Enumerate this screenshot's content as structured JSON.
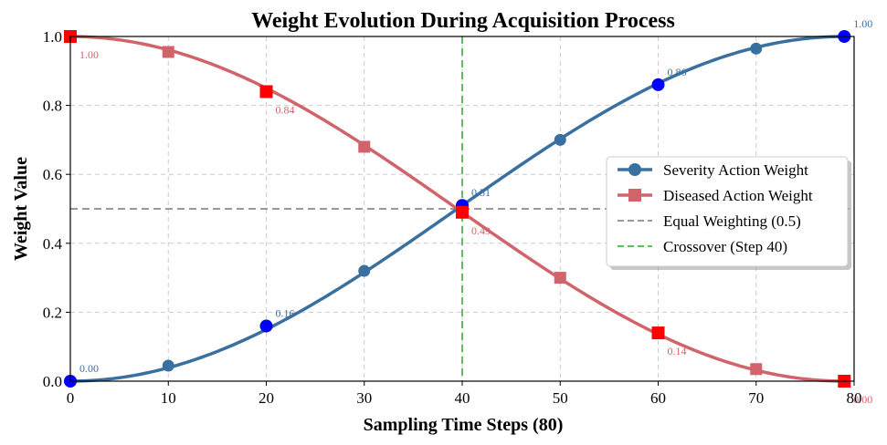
{
  "chart_data": {
    "type": "line",
    "title": "Weight Evolution During Acquisition Process",
    "xlabel": "Sampling Time Steps (80)",
    "ylabel": "Weight Value",
    "xlim": [
      0,
      80
    ],
    "ylim": [
      0,
      1
    ],
    "xticks": [
      "0",
      "10",
      "20",
      "30",
      "40",
      "50",
      "60",
      "70",
      "80"
    ],
    "yticks": [
      "0.0",
      "0.2",
      "0.4",
      "0.6",
      "0.8",
      "1.0"
    ],
    "grid": true,
    "legend_position": "center-right",
    "series": [
      {
        "name": "Severity Action Weight",
        "color": "#3a70a0",
        "marker": "circle",
        "x": [
          0,
          10,
          20,
          30,
          40,
          50,
          60,
          70,
          79
        ],
        "values": [
          0.0,
          0.045,
          0.16,
          0.32,
          0.51,
          0.7,
          0.86,
          0.965,
          1.0
        ]
      },
      {
        "name": "Diseased Action Weight",
        "color": "#d0646a",
        "marker": "square",
        "x": [
          0,
          10,
          20,
          30,
          40,
          50,
          60,
          70,
          79
        ],
        "values": [
          1.0,
          0.955,
          0.84,
          0.68,
          0.49,
          0.3,
          0.14,
          0.035,
          0.0
        ]
      }
    ],
    "reference_lines": [
      {
        "name": "Equal Weighting (0.5)",
        "orientation": "horizontal",
        "value": 0.5,
        "color": "#999999"
      },
      {
        "name": "Crossover (Step 40)",
        "orientation": "vertical",
        "value": 40,
        "color": "#5cbf5c"
      }
    ],
    "highlights": [
      {
        "series": 0,
        "x": 0,
        "y": 0.0,
        "label": "0.00",
        "color": "#0000ff",
        "label_color": "#3a70a0"
      },
      {
        "series": 0,
        "x": 20,
        "y": 0.16,
        "label": "0.16",
        "color": "#0000ff",
        "label_color": "#3a70a0"
      },
      {
        "series": 0,
        "x": 40,
        "y": 0.51,
        "label": "0.51",
        "color": "#0000ff",
        "label_color": "#3a70a0"
      },
      {
        "series": 0,
        "x": 60,
        "y": 0.86,
        "label": "0.86",
        "color": "#0000ff",
        "label_color": "#3a70a0"
      },
      {
        "series": 0,
        "x": 79,
        "y": 1.0,
        "label": "1.00",
        "color": "#0000ff",
        "label_color": "#3a70a0"
      },
      {
        "series": 1,
        "x": 0,
        "y": 1.0,
        "label": "1.00",
        "color": "#ff0000",
        "label_color": "#d0646a"
      },
      {
        "series": 1,
        "x": 20,
        "y": 0.84,
        "label": "0.84",
        "color": "#ff0000",
        "label_color": "#d0646a"
      },
      {
        "series": 1,
        "x": 40,
        "y": 0.49,
        "label": "0.49",
        "color": "#ff0000",
        "label_color": "#d0646a"
      },
      {
        "series": 1,
        "x": 60,
        "y": 0.14,
        "label": "0.14",
        "color": "#ff0000",
        "label_color": "#d0646a"
      },
      {
        "series": 1,
        "x": 79,
        "y": 0.0,
        "label": "0.00",
        "color": "#ff0000",
        "label_color": "#d0646a"
      }
    ]
  }
}
